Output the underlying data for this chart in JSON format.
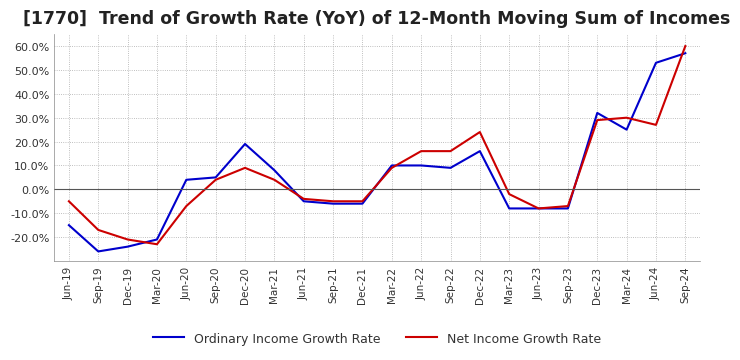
{
  "title": "[1770]  Trend of Growth Rate (YoY) of 12-Month Moving Sum of Incomes",
  "title_fontsize": 12.5,
  "x_labels": [
    "Jun-19",
    "Sep-19",
    "Dec-19",
    "Mar-20",
    "Jun-20",
    "Sep-20",
    "Dec-20",
    "Mar-21",
    "Jun-21",
    "Sep-21",
    "Dec-21",
    "Mar-22",
    "Jun-22",
    "Sep-22",
    "Dec-22",
    "Mar-23",
    "Jun-23",
    "Sep-23",
    "Dec-23",
    "Mar-24",
    "Jun-24",
    "Sep-24"
  ],
  "ylim": [
    -30,
    65
  ],
  "yticks": [
    -20,
    -10,
    0,
    10,
    20,
    30,
    40,
    50,
    60
  ],
  "ordinary_income": [
    -15.0,
    -26.0,
    -24.0,
    -21.0,
    4.0,
    5.0,
    19.0,
    8.0,
    -5.0,
    -6.0,
    -6.0,
    10.0,
    10.0,
    9.0,
    16.0,
    -8.0,
    -8.0,
    -8.0,
    32.0,
    25.0,
    53.0,
    57.0
  ],
  "net_income": [
    -5.0,
    -17.0,
    -21.0,
    -23.0,
    -7.0,
    4.0,
    9.0,
    4.0,
    -4.0,
    -5.0,
    -5.0,
    9.0,
    16.0,
    16.0,
    24.0,
    -2.0,
    -8.0,
    -7.0,
    29.0,
    30.0,
    27.0,
    60.0
  ],
  "ordinary_color": "#0000cc",
  "net_color": "#cc0000",
  "line_width": 1.5,
  "legend_ordinary": "Ordinary Income Growth Rate",
  "legend_net": "Net Income Growth Rate",
  "background_color": "#ffffff",
  "plot_bg_color": "#ffffff",
  "grid_color": "#aaaaaa"
}
